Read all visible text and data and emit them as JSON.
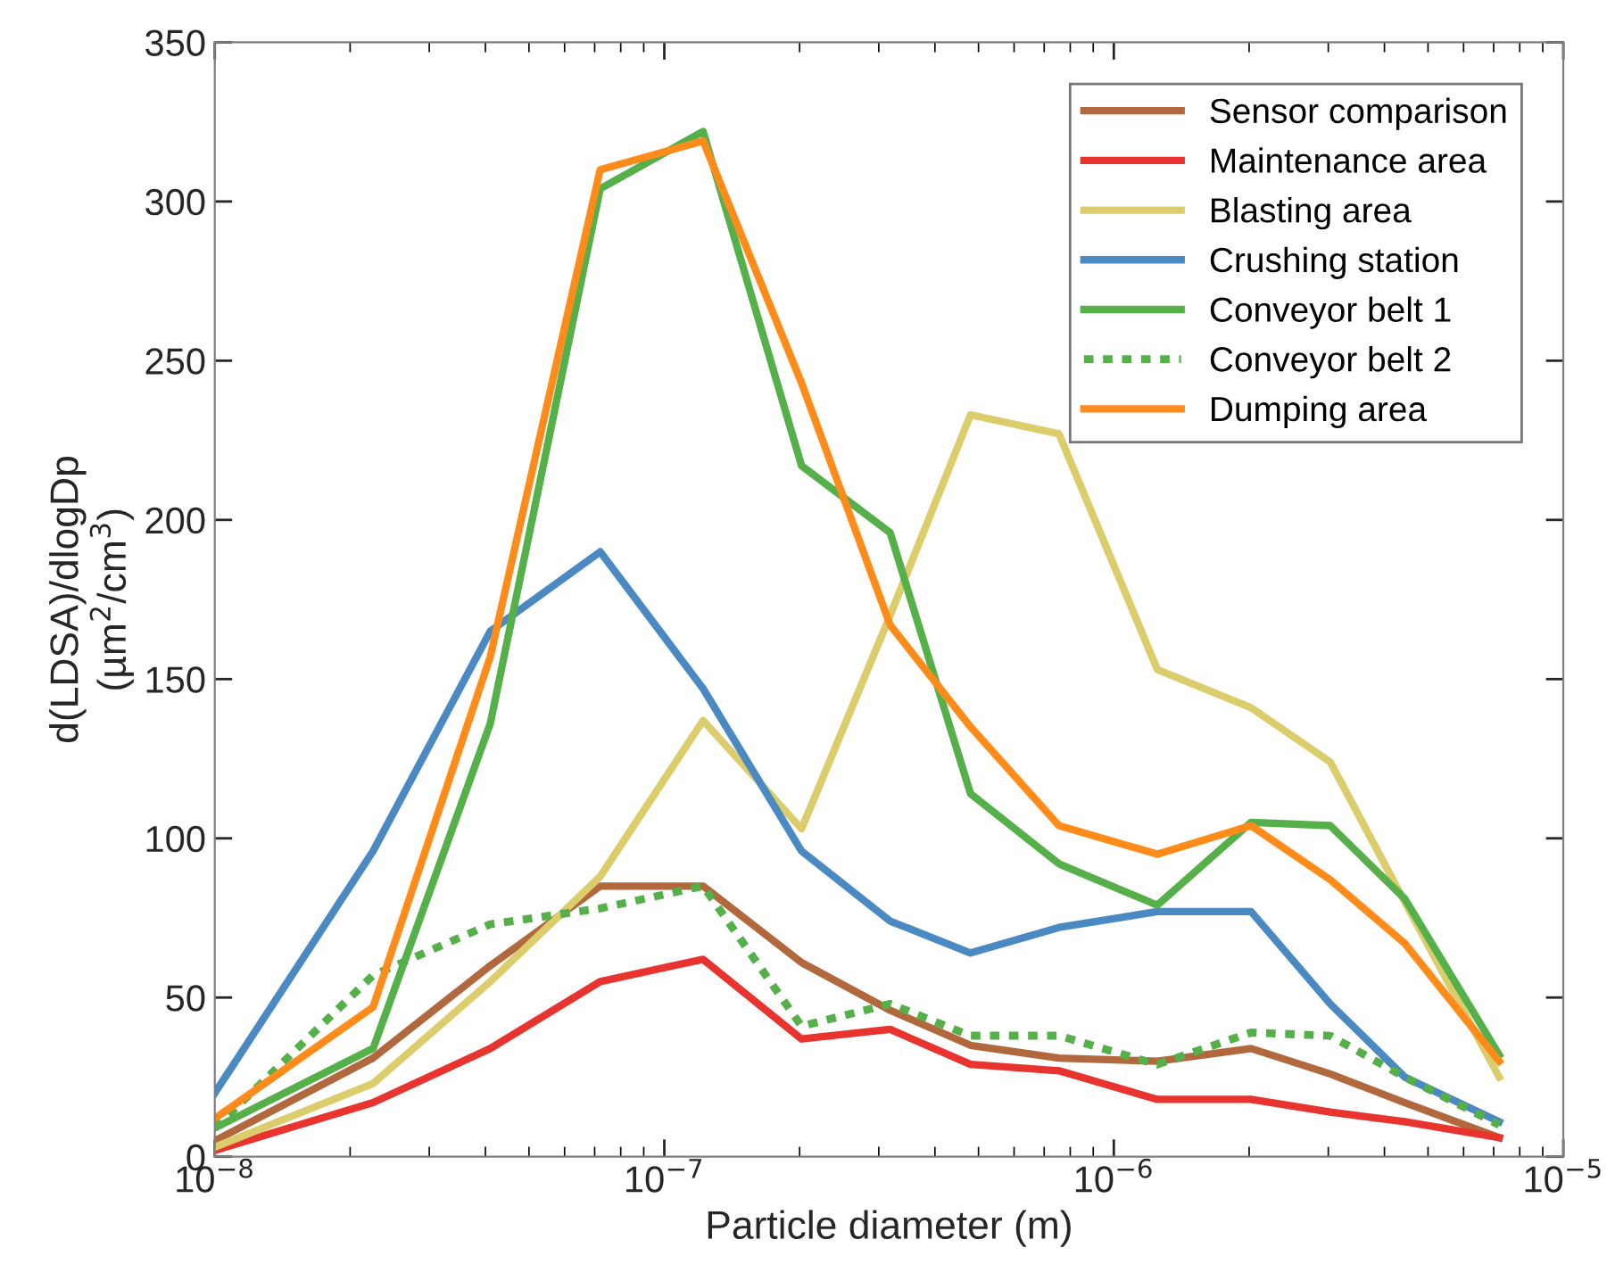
{
  "chart_data": {
    "type": "line",
    "xlabel": "Particle diameter (m)",
    "ylabel": "d(LDSA)/dlogDp\n(µm$^{2}$/cm$^{3}$)",
    "x": [
      1e-08,
      2.25e-08,
      4.1e-08,
      7.2e-08,
      1.22e-07,
      2.02e-07,
      3.18e-07,
      4.8e-07,
      7.55e-07,
      1.25e-06,
      2.02e-06,
      3.03e-06,
      4.44e-06,
      7.2e-06
    ],
    "log": "x",
    "xlim": [
      1e-08,
      1e-05
    ],
    "xticks": [
      {
        "value": 1e-08,
        "label": "10$^{−8}$"
      },
      {
        "value": 1e-07,
        "label": "10$^{−7}$"
      },
      {
        "value": 1e-06,
        "label": "10$^{−6}$"
      },
      {
        "value": 1e-05,
        "label": "10$^{−5}$"
      }
    ],
    "ylim": [
      0,
      350
    ],
    "yticks": [
      0,
      50,
      100,
      150,
      200,
      250,
      300,
      350
    ],
    "grid": false,
    "legend": "top right",
    "marker": "none",
    "series": [
      {
        "name": "Sensor comparison",
        "color": "#b0683c",
        "values": [
          5,
          31,
          60,
          85,
          85,
          61,
          46,
          35,
          31,
          30,
          34,
          26,
          17,
          6
        ]
      },
      {
        "name": "Maintenance area",
        "color": "#e8332f",
        "values": [
          2,
          17,
          34,
          55,
          62,
          37,
          40,
          29,
          27,
          18,
          18,
          14,
          11,
          6
        ]
      },
      {
        "name": "Blasting area",
        "color": "#dccd6c",
        "values": [
          3,
          23,
          55,
          88,
          137,
          103,
          170,
          233,
          227,
          153,
          141,
          124,
          80,
          25
        ]
      },
      {
        "name": "Crushing station",
        "color": "#4a89c2",
        "values": [
          20,
          96,
          165,
          190,
          147,
          96,
          74,
          64,
          72,
          77,
          77,
          48,
          25,
          11
        ]
      },
      {
        "name": "Conveyor belt 1",
        "color": "#55b04a",
        "values": [
          9,
          34,
          136,
          304,
          322,
          217,
          196,
          114,
          92,
          79,
          105,
          104,
          81,
          32
        ]
      },
      {
        "name": "Conveyor belt 2",
        "color": "#55b04a",
        "line_style": "dotted",
        "values": [
          9,
          57,
          73,
          78,
          85,
          41,
          48,
          38,
          38,
          29,
          39,
          38,
          25,
          10
        ]
      },
      {
        "name": "Dumping area",
        "color": "#ff8c1a",
        "values": [
          12,
          47,
          157,
          310,
          319,
          243,
          167,
          135,
          104,
          95,
          104,
          87,
          67,
          30
        ]
      }
    ]
  }
}
